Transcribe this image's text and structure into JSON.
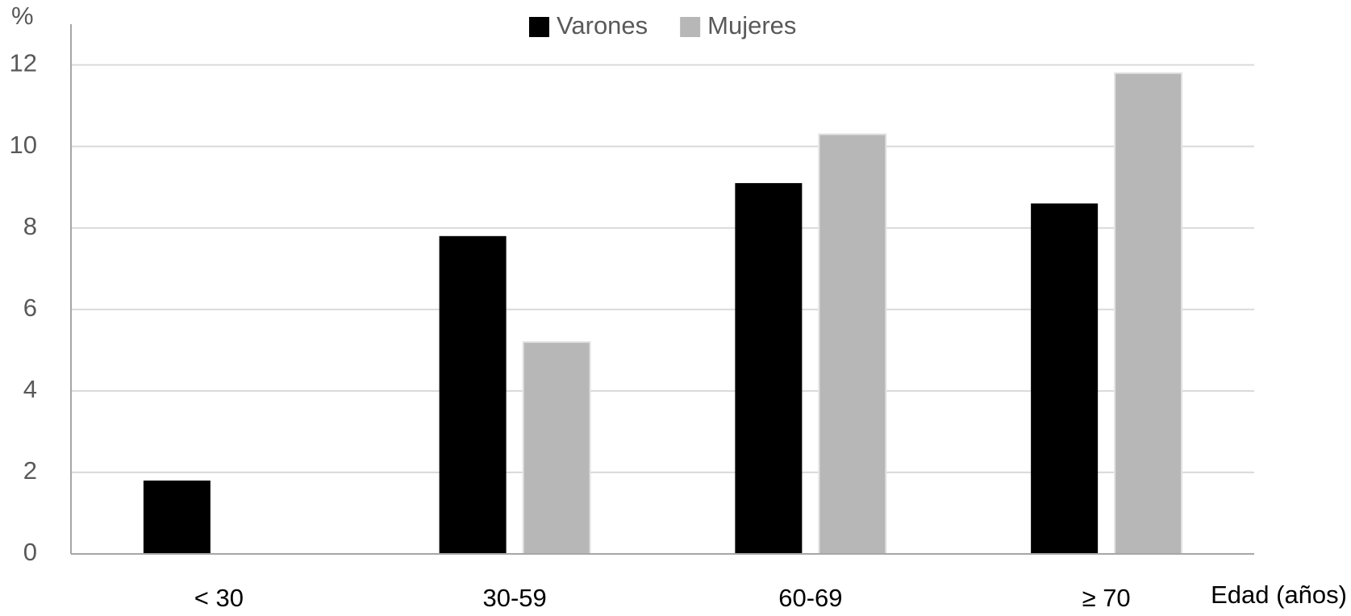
{
  "chart_data": {
    "type": "bar",
    "y_label": "%",
    "x_label": "Edad (años)",
    "categories": [
      "< 30",
      "30-59",
      "60-69",
      "≥ 70"
    ],
    "series": [
      {
        "name": "Varones",
        "color": "#000000",
        "values": [
          1.8,
          7.8,
          9.1,
          8.6
        ]
      },
      {
        "name": "Mujeres",
        "color": "#b7b7b7",
        "values": [
          0,
          5.2,
          10.3,
          11.8
        ]
      }
    ],
    "ylim": [
      0,
      13
    ],
    "yticks": [
      0,
      2,
      4,
      6,
      8,
      10,
      12
    ],
    "grid": true,
    "legend": "top"
  }
}
